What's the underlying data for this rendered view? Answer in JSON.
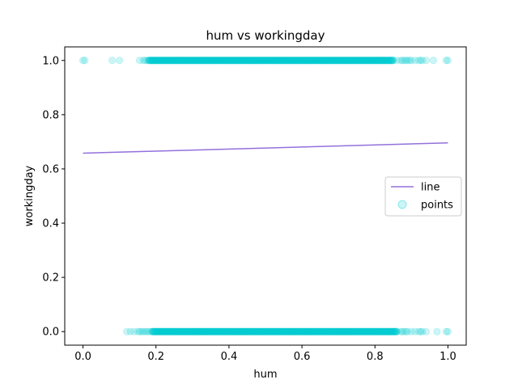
{
  "chart_data": {
    "type": "scatter",
    "title": "hum vs workingday",
    "xlabel": "hum",
    "ylabel": "workingday",
    "xlim": [
      -0.05,
      1.05
    ],
    "ylim": [
      -0.05,
      1.05
    ],
    "xticks": [
      0.0,
      0.2,
      0.4,
      0.6,
      0.8,
      1.0
    ],
    "xtick_labels": [
      "0.0",
      "0.2",
      "0.4",
      "0.6",
      "0.8",
      "1.0"
    ],
    "yticks": [
      0.0,
      0.2,
      0.4,
      0.6,
      0.8,
      1.0
    ],
    "ytick_labels": [
      "0.0",
      "0.2",
      "0.4",
      "0.6",
      "0.8",
      "1.0"
    ],
    "grid": false,
    "legend_position": "center-right",
    "series": [
      {
        "name": "line",
        "kind": "line",
        "color": "#9370DB",
        "x": [
          0.0,
          1.0
        ],
        "y": [
          0.658,
          0.696
        ]
      },
      {
        "name": "points",
        "kind": "scatter",
        "color": "#00CED1",
        "alpha": 0.2,
        "groups": [
          {
            "y": 1.0,
            "dense_range": [
              0.18,
              0.85
            ],
            "x": [
              0.0,
              0.005,
              0.08,
              0.1,
              0.155,
              0.165,
              0.17,
              0.175,
              0.86,
              0.87,
              0.875,
              0.88,
              0.885,
              0.89,
              0.895,
              0.9,
              0.91,
              0.92,
              0.925,
              0.93,
              0.94,
              0.96,
              0.995,
              1.0
            ]
          },
          {
            "y": 0.0,
            "dense_range": [
              0.19,
              0.86
            ],
            "x": [
              0.12,
              0.13,
              0.14,
              0.15,
              0.155,
              0.16,
              0.165,
              0.17,
              0.175,
              0.18,
              0.185,
              0.87,
              0.875,
              0.88,
              0.885,
              0.89,
              0.9,
              0.91,
              0.92,
              0.925,
              0.93,
              0.94,
              0.97,
              0.995,
              1.0
            ]
          }
        ]
      }
    ]
  }
}
